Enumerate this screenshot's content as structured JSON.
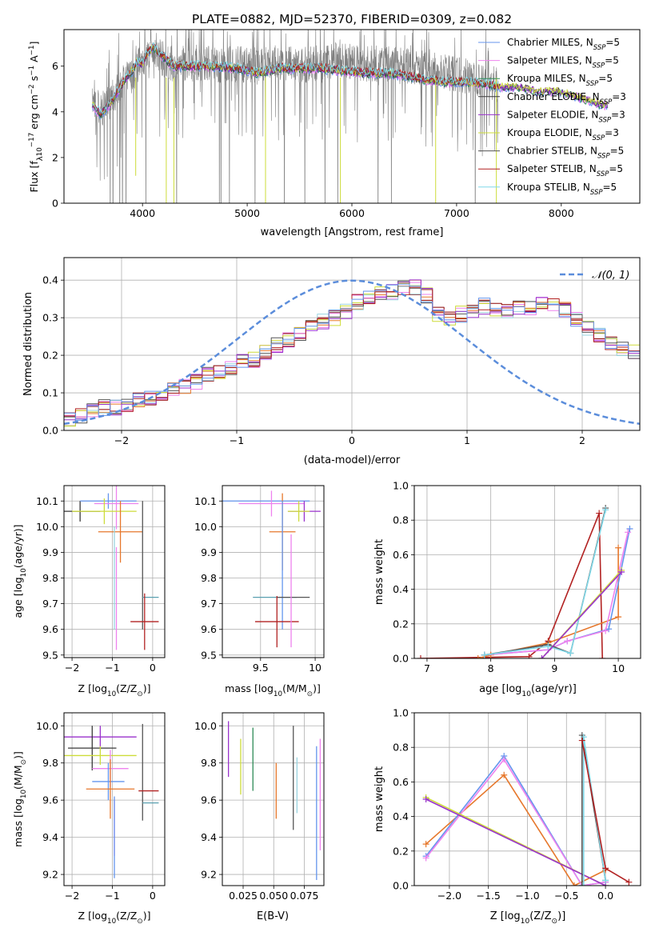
{
  "figure": {
    "title": "PLATE=0882, MJD=52370, FIBERID=0309, z=0.082"
  },
  "chart_data": [
    {
      "id": "spectrum",
      "type": "line",
      "xlabel": "wavelength [Angstrom, rest frame]",
      "ylabel_parts": [
        "Flux [f",
        "λ",
        "10",
        "−17",
        " erg cm",
        "−2",
        " s",
        "−1",
        " A",
        "−1",
        "]"
      ],
      "xlim": [
        3250,
        8750
      ],
      "ylim": [
        0,
        7.6
      ],
      "xticks": [
        4000,
        5000,
        6000,
        7000,
        8000
      ],
      "yticks": [
        0,
        2,
        4,
        6
      ],
      "legend": "top-right",
      "observed": {
        "color": "#7f7f7f",
        "x": [
          3520,
          3600,
          3700,
          3800,
          3900,
          4000,
          4100,
          4200,
          4300,
          4500,
          4700,
          4900,
          5100,
          5300,
          5500,
          5700,
          5900,
          6100,
          6300,
          6500,
          6700,
          6900,
          7100,
          7300,
          7400
        ],
        "y": [
          4.3,
          4.0,
          4.5,
          5.3,
          5.6,
          6.3,
          6.6,
          6.3,
          6.1,
          6.2,
          6.1,
          6.1,
          6.0,
          6.2,
          6.0,
          6.2,
          6.3,
          6.1,
          6.1,
          6.0,
          5.9,
          5.7,
          5.6,
          5.4,
          5.2
        ]
      },
      "model": {
        "x": [
          3520,
          3600,
          3700,
          3800,
          3900,
          3950,
          4000,
          4050,
          4100,
          4200,
          4300,
          4500,
          4700,
          4900,
          5100,
          5300,
          5500,
          5700,
          5900,
          6100,
          6300,
          6500,
          6700,
          6900,
          7100,
          7300,
          7400,
          7600,
          7800,
          8000,
          8200,
          8400
        ],
        "y": [
          4.3,
          3.9,
          4.4,
          5.2,
          5.8,
          6.2,
          6.1,
          6.6,
          6.8,
          6.4,
          6.0,
          6.0,
          6.0,
          5.9,
          5.7,
          5.9,
          5.9,
          5.9,
          5.8,
          5.7,
          5.7,
          5.6,
          5.4,
          5.3,
          5.3,
          5.2,
          5.1,
          5.1,
          4.9,
          4.9,
          4.6,
          4.3
        ]
      },
      "series_names": [
        {
          "pre": "Chabrier MILES, N",
          "sub": "SSP",
          "post": "=5",
          "color": "#6495ed"
        },
        {
          "pre": "Salpeter MILES, N",
          "sub": "SSP",
          "post": "=5",
          "color": "#ee82ee"
        },
        {
          "pre": "Kroupa MILES, N",
          "sub": "SSP",
          "post": "=5",
          "color": "#2e8b57"
        },
        {
          "pre": "Chabrier ELODIE, N",
          "sub": "SSP",
          "post": "=3",
          "color": "#3a3a3a"
        },
        {
          "pre": "Salpeter ELODIE, N",
          "sub": "SSP",
          "post": "=3",
          "color": "#9932cc"
        },
        {
          "pre": "Kroupa ELODIE, N",
          "sub": "SSP",
          "post": "=3",
          "color": "#cddc39"
        },
        {
          "pre": "Chabrier STELIB, N",
          "sub": "SSP",
          "post": "=5",
          "color": "#555555"
        },
        {
          "pre": "Salpeter STELIB, N",
          "sub": "SSP",
          "post": "=5",
          "color": "#b22222"
        },
        {
          "pre": "Kroupa STELIB, N",
          "sub": "SSP",
          "post": "=5",
          "color": "#80d8e8"
        }
      ]
    },
    {
      "id": "residuals",
      "type": "line",
      "xlabel": "(data-model)/error",
      "ylabel": "Normed distribution",
      "xlim": [
        -2.5,
        2.5
      ],
      "ylim": [
        0,
        0.46
      ],
      "xticks": [
        -2,
        -1,
        0,
        1,
        2
      ],
      "yticks": [
        0.0,
        0.1,
        0.2,
        0.3,
        0.4
      ],
      "grid": true,
      "legend": "top-right",
      "gaussian_label": "𝒩(0, 1)",
      "gaussian_color": "#5b8ddb",
      "bin_edges_start": -2.5,
      "bin_width": 0.1,
      "base_values": [
        0.03,
        0.04,
        0.05,
        0.06,
        0.06,
        0.07,
        0.08,
        0.09,
        0.1,
        0.11,
        0.12,
        0.13,
        0.15,
        0.16,
        0.17,
        0.18,
        0.19,
        0.21,
        0.23,
        0.24,
        0.26,
        0.27,
        0.29,
        0.3,
        0.32,
        0.34,
        0.35,
        0.36,
        0.37,
        0.38,
        0.38,
        0.36,
        0.31,
        0.3,
        0.31,
        0.32,
        0.33,
        0.32,
        0.32,
        0.33,
        0.33,
        0.34,
        0.33,
        0.32,
        0.3,
        0.27,
        0.25,
        0.23,
        0.22,
        0.21,
        0.2,
        0.19,
        0.17,
        0.15,
        0.13,
        0.12,
        0.11,
        0.1,
        0.09,
        0.08,
        0.08,
        0.07,
        0.07,
        0.07,
        0.06,
        0.06,
        0.05,
        0.05,
        0.04,
        0.04,
        0.03,
        0.03
      ],
      "series_colors": [
        "#8b0000",
        "#e6772b",
        "#ee82ee",
        "#9ad4e0",
        "#cddc39",
        "#555555",
        "#9932cc",
        "#b22222",
        "#6495ed"
      ]
    },
    {
      "id": "age_vs_Z",
      "type": "scatter",
      "xlabel_parts": [
        "Z [log",
        "10",
        "(Z/Z",
        "⊙",
        ")]"
      ],
      "ylabel_parts": [
        "age  [log",
        "10",
        "(age/yr)]"
      ],
      "xlim": [
        -2.2,
        0.3
      ],
      "ylim": [
        9.49,
        10.16
      ],
      "xticks": [
        -2,
        -1,
        0
      ],
      "yticks": [
        9.5,
        9.6,
        9.7,
        9.8,
        9.9,
        10.0,
        10.1
      ],
      "grid": true,
      "points": [
        {
          "x": -1.8,
          "y": 10.06,
          "xerr": 0.5,
          "yerr": 0.04,
          "color": "#3a3a3a"
        },
        {
          "x": -1.1,
          "y": 10.1,
          "xerr": 0.7,
          "yerr": 0.03,
          "color": "#6495ed"
        },
        {
          "x": -0.9,
          "y": 10.09,
          "xerr": 0.55,
          "yerr": 0.1,
          "color": "#ee82ee"
        },
        {
          "x": -1.2,
          "y": 10.06,
          "xerr": 0.8,
          "yerr": 0.05,
          "color": "#cddc39"
        },
        {
          "x": -0.8,
          "y": 9.98,
          "xerr": 0.55,
          "yerr": 0.12,
          "color": "#e6772b"
        },
        {
          "x": -0.95,
          "y": 9.8,
          "xerr": 0.0,
          "yerr": 0.2,
          "color": "#9ad4e0"
        },
        {
          "x": -0.9,
          "y": 9.72,
          "xerr": 0.0,
          "yerr": 0.2,
          "color": "#ee82ee"
        },
        {
          "x": -0.25,
          "y": 9.85,
          "xerr": 0.0,
          "yerr": 0.25,
          "color": "#555555"
        },
        {
          "x": -0.05,
          "y": 9.725,
          "xerr": 0.2,
          "yerr": 0.0,
          "color": "#5aa0b0"
        },
        {
          "x": -0.2,
          "y": 9.63,
          "xerr": 0.35,
          "yerr": 0.11,
          "color": "#b22222"
        }
      ]
    },
    {
      "id": "age_vs_mass",
      "type": "scatter",
      "xlabel_parts": [
        "mass [log",
        "10",
        "(M/M",
        "⊙",
        ")]"
      ],
      "xlim": [
        9.15,
        10.08
      ],
      "ylim": [
        9.49,
        10.16
      ],
      "xticks": [
        9.5,
        10.0
      ],
      "yticks": [
        9.5,
        9.6,
        9.7,
        9.8,
        9.9,
        10.0,
        10.1
      ],
      "grid": true,
      "points": [
        {
          "x": 9.55,
          "y": 10.1,
          "xerr": 0.4,
          "yerr": 0.0,
          "color": "#6495ed"
        },
        {
          "x": 9.6,
          "y": 10.09,
          "xerr": 0.3,
          "yerr": 0.05,
          "color": "#ee82ee"
        },
        {
          "x": 9.9,
          "y": 10.06,
          "xerr": 0.15,
          "yerr": 0.04,
          "color": "#9932cc"
        },
        {
          "x": 9.85,
          "y": 10.06,
          "xerr": 0.1,
          "yerr": 0.04,
          "color": "#cddc39"
        },
        {
          "x": 9.7,
          "y": 9.98,
          "xerr": 0.12,
          "yerr": 0.15,
          "color": "#e6772b"
        },
        {
          "x": 9.7,
          "y": 9.85,
          "xerr": 0.0,
          "yerr": 0.25,
          "color": "#6495ed"
        },
        {
          "x": 9.63,
          "y": 9.725,
          "xerr": 0.2,
          "yerr": 0.0,
          "color": "#5aa0b0"
        },
        {
          "x": 9.8,
          "y": 9.725,
          "xerr": 0.15,
          "yerr": 0.0,
          "color": "#555555"
        },
        {
          "x": 9.65,
          "y": 9.63,
          "xerr": 0.2,
          "yerr": 0.1,
          "color": "#b22222"
        },
        {
          "x": 9.78,
          "y": 9.75,
          "xerr": 0.0,
          "yerr": 0.22,
          "color": "#ee82ee"
        }
      ]
    },
    {
      "id": "massweight_vs_age",
      "type": "line",
      "xlabel_parts": [
        "age  [log",
        "10",
        "(age/yr)]"
      ],
      "ylabel": "mass weight",
      "xlim": [
        6.8,
        10.35
      ],
      "ylim": [
        0,
        1.0
      ],
      "xticks": [
        7,
        8,
        9,
        10
      ],
      "yticks": [
        0.0,
        0.2,
        0.4,
        0.6,
        0.8,
        1.0
      ],
      "grid": true,
      "series": [
        {
          "color": "#b22222",
          "x": [
            6.9,
            8.6,
            8.9,
            9.7,
            9.75
          ],
          "y": [
            0.0,
            0.01,
            0.1,
            0.84,
            0.0
          ]
        },
        {
          "color": "#e6772b",
          "x": [
            7.8,
            8.0,
            8.9,
            10.0,
            10.0
          ],
          "y": [
            0.0,
            0.02,
            0.09,
            0.24,
            0.64
          ]
        },
        {
          "color": "#6495ed",
          "x": [
            7.9,
            8.9,
            9.2,
            9.85,
            10.18
          ],
          "y": [
            0.02,
            0.05,
            0.1,
            0.17,
            0.75
          ]
        },
        {
          "color": "#ee82ee",
          "x": [
            7.9,
            8.9,
            9.2,
            9.8,
            10.15
          ],
          "y": [
            0.02,
            0.05,
            0.1,
            0.16,
            0.73
          ]
        },
        {
          "color": "#555555",
          "x": [
            7.9,
            8.9,
            9.25,
            9.8
          ],
          "y": [
            0.02,
            0.08,
            0.03,
            0.87
          ]
        },
        {
          "color": "#80d8e8",
          "x": [
            7.9,
            8.9,
            9.25,
            9.8
          ],
          "y": [
            0.02,
            0.07,
            0.03,
            0.86
          ]
        },
        {
          "color": "#cddc39",
          "x": [
            8.8,
            10.05
          ],
          "y": [
            0.0,
            0.51
          ]
        },
        {
          "color": "#9932cc",
          "x": [
            8.8,
            10.05
          ],
          "y": [
            0.0,
            0.5
          ]
        }
      ]
    },
    {
      "id": "mass_vs_Z",
      "type": "scatter",
      "xlabel_parts": [
        "Z [log",
        "10",
        "(Z/Z",
        "⊙",
        ")]"
      ],
      "ylabel_parts": [
        "mass [log",
        "10",
        "(M/M",
        "⊙",
        ")]"
      ],
      "xlim": [
        -2.2,
        0.3
      ],
      "ylim": [
        9.14,
        10.07
      ],
      "xticks": [
        -2,
        -1,
        0
      ],
      "yticks": [
        9.2,
        9.4,
        9.6,
        9.8,
        10.0
      ],
      "grid": true,
      "points": [
        {
          "x": -1.3,
          "y": 9.94,
          "xerr": 0.9,
          "yerr": 0.06,
          "color": "#9932cc"
        },
        {
          "x": -1.5,
          "y": 9.88,
          "xerr": 0.6,
          "yerr": 0.12,
          "color": "#3a3a3a"
        },
        {
          "x": -1.3,
          "y": 9.84,
          "xerr": 0.9,
          "yerr": 0.05,
          "color": "#cddc39"
        },
        {
          "x": -1.05,
          "y": 9.77,
          "xerr": 0.45,
          "yerr": 0.1,
          "color": "#ee82ee"
        },
        {
          "x": -1.1,
          "y": 9.7,
          "xerr": 0.4,
          "yerr": 0.1,
          "color": "#6495ed"
        },
        {
          "x": -1.05,
          "y": 9.66,
          "xerr": 0.6,
          "yerr": 0.16,
          "color": "#e6772b"
        },
        {
          "x": -0.95,
          "y": 9.45,
          "xerr": 0.0,
          "yerr": 0.15,
          "color": "#ee82ee"
        },
        {
          "x": -0.95,
          "y": 9.4,
          "xerr": 0.0,
          "yerr": 0.22,
          "color": "#6495ed"
        },
        {
          "x": -0.25,
          "y": 9.75,
          "xerr": 0.0,
          "yerr": 0.26,
          "color": "#555555"
        },
        {
          "x": -0.1,
          "y": 9.65,
          "xerr": 0.25,
          "yerr": 0.0,
          "color": "#b22222"
        },
        {
          "x": -0.05,
          "y": 9.585,
          "xerr": 0.2,
          "yerr": 0.0,
          "color": "#5aa0b0"
        }
      ]
    },
    {
      "id": "mass_vs_EBV",
      "type": "scatter",
      "xlabel": "E(B-V)",
      "xlim": [
        0.008,
        0.091
      ],
      "ylim": [
        9.14,
        10.07
      ],
      "xticks": [
        0.025,
        0.05,
        0.075
      ],
      "xtick_labels": [
        "0.025",
        "0.050",
        "0.075"
      ],
      "yticks": [
        9.2,
        9.4,
        9.6,
        9.8,
        10.0
      ],
      "grid": true,
      "points": [
        {
          "x": 0.013,
          "y": 9.875,
          "yerr": 0.15,
          "color": "#9932cc"
        },
        {
          "x": 0.023,
          "y": 9.78,
          "yerr": 0.15,
          "color": "#cddc39"
        },
        {
          "x": 0.033,
          "y": 9.82,
          "yerr": 0.17,
          "color": "#2e8b57"
        },
        {
          "x": 0.052,
          "y": 9.65,
          "yerr": 0.15,
          "color": "#e6772b"
        },
        {
          "x": 0.066,
          "y": 9.72,
          "yerr": 0.28,
          "color": "#555555"
        },
        {
          "x": 0.069,
          "y": 9.68,
          "yerr": 0.15,
          "color": "#9ad4e0"
        },
        {
          "x": 0.085,
          "y": 9.53,
          "yerr": 0.36,
          "color": "#6495ed"
        },
        {
          "x": 0.088,
          "y": 9.63,
          "yerr": 0.3,
          "color": "#ee82ee"
        }
      ]
    },
    {
      "id": "massweight_vs_Z",
      "type": "line",
      "xlabel_parts": [
        "Z [log",
        "10",
        "(Z/Z",
        "⊙",
        ")]"
      ],
      "ylabel": "mass weight",
      "xlim": [
        -2.45,
        0.45
      ],
      "ylim": [
        0,
        1.0
      ],
      "xticks": [
        -2.0,
        -1.5,
        -1.0,
        -0.5,
        0.0
      ],
      "xtick_labels": [
        "−2.0",
        "−1.5",
        "−1.0",
        "−0.5",
        "0.0"
      ],
      "yticks": [
        0.0,
        0.2,
        0.4,
        0.6,
        0.8,
        1.0
      ],
      "grid": true,
      "series": [
        {
          "color": "#e6772b",
          "x": [
            -2.3,
            -1.3,
            -0.4,
            0.0
          ],
          "y": [
            0.24,
            0.64,
            0.0,
            0.09
          ]
        },
        {
          "color": "#6495ed",
          "x": [
            -2.3,
            -1.3,
            -0.3,
            0.0
          ],
          "y": [
            0.17,
            0.75,
            0.0,
            0.02
          ]
        },
        {
          "color": "#ee82ee",
          "x": [
            -2.3,
            -1.3,
            -0.3,
            0.0
          ],
          "y": [
            0.16,
            0.73,
            0.0,
            0.02
          ]
        },
        {
          "color": "#cddc39",
          "x": [
            -2.3,
            0.0
          ],
          "y": [
            0.51,
            0.0
          ]
        },
        {
          "color": "#9932cc",
          "x": [
            -2.3,
            0.0
          ],
          "y": [
            0.5,
            0.0
          ]
        },
        {
          "color": "#555555",
          "x": [
            -0.3,
            -0.3,
            0.0
          ],
          "y": [
            0.0,
            0.87,
            0.03
          ]
        },
        {
          "color": "#80d8e8",
          "x": [
            -0.28,
            -0.28,
            0.0
          ],
          "y": [
            0.0,
            0.86,
            0.03
          ]
        },
        {
          "color": "#b22222",
          "x": [
            -0.3,
            0.0,
            0.3
          ],
          "y": [
            0.84,
            0.1,
            0.02
          ]
        }
      ]
    }
  ]
}
